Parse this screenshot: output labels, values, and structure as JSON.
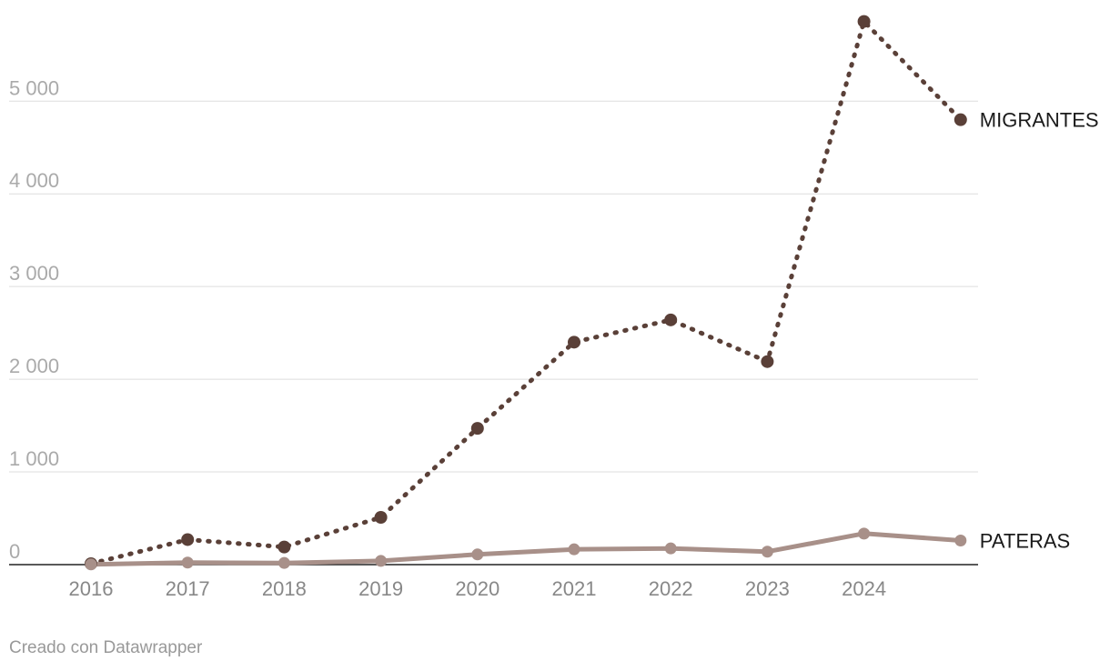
{
  "credit": "Creado con Datawrapper",
  "colors": {
    "migrantes": "#5a4038",
    "pateras": "#a89089",
    "grid": "#dddddd",
    "baseline": "#222222"
  },
  "chart_data": {
    "type": "line",
    "x_ticks": [
      "2016",
      "2017",
      "2018",
      "2019",
      "2020",
      "2021",
      "2022",
      "2023",
      "2024"
    ],
    "x": [
      2016,
      2017,
      2018,
      2019,
      2020,
      2021,
      2022,
      2023,
      2024,
      2025
    ],
    "y_ticks": [
      0,
      1000,
      2000,
      3000,
      4000,
      5000
    ],
    "y_tick_labels": [
      "0",
      "1 000",
      "2 000",
      "3 000",
      "4 000",
      "5 000"
    ],
    "ylim": [
      0,
      5900
    ],
    "grid": true,
    "legend": "direct labels at line ends",
    "series": [
      {
        "name": "MIGRANTES",
        "style": "dotted",
        "values": [
          10,
          270,
          190,
          510,
          1470,
          2400,
          2640,
          2190,
          5860,
          4800
        ]
      },
      {
        "name": "PATERAS",
        "style": "solid",
        "values": [
          2,
          22,
          18,
          40,
          110,
          165,
          175,
          140,
          335,
          260
        ]
      }
    ]
  }
}
